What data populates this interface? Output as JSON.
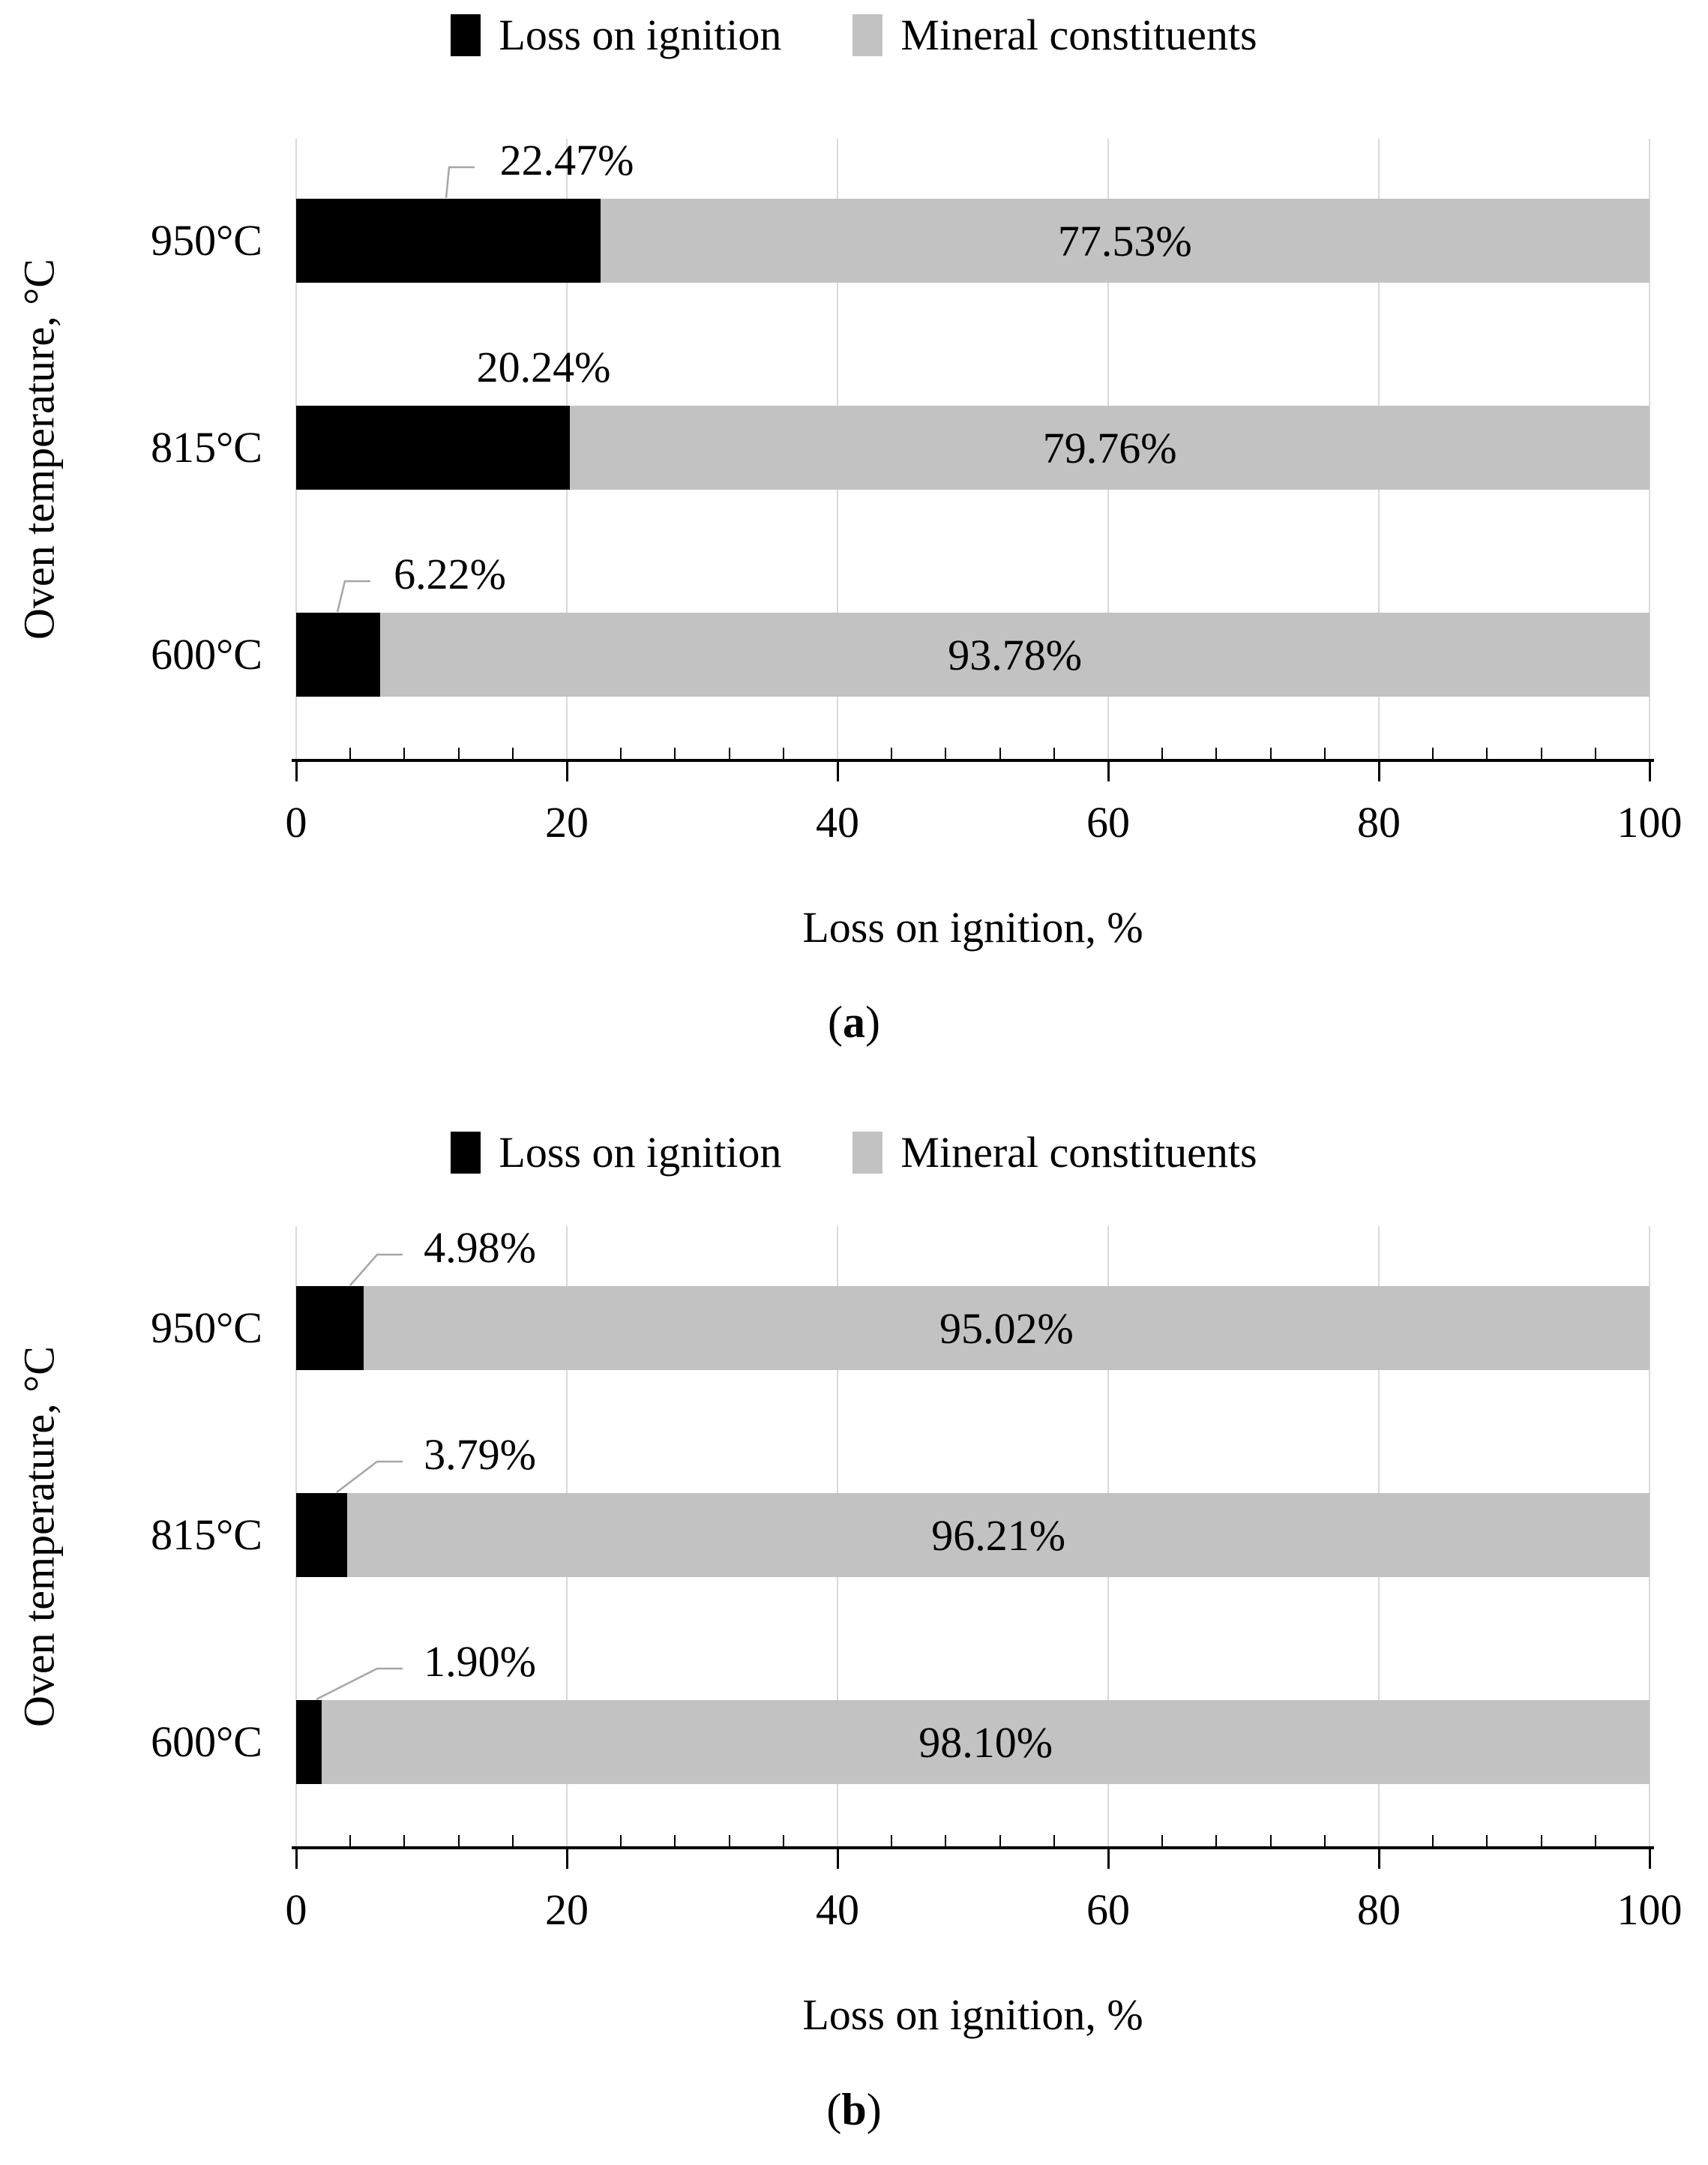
{
  "colors": {
    "loss_on_ignition": "#000000",
    "mineral_constituents": "#c2c2c2",
    "gridline": "#d9d9d9",
    "leader_line": "#a6a6a6",
    "axis": "#000000",
    "text": "#000000",
    "background": "#ffffff"
  },
  "chart_data": [
    {
      "panel": "a",
      "type": "bar",
      "orientation": "horizontal",
      "stacked": true,
      "xlabel": "Loss on ignition, %",
      "ylabel": "Oven temperature, °C",
      "xlim": [
        0,
        100
      ],
      "x_tick_labels": [
        "0",
        "20",
        "40",
        "60",
        "80",
        "100"
      ],
      "x_tick_values": [
        0,
        20,
        40,
        60,
        80,
        100
      ],
      "minor_tick_unit": 4,
      "grid": "vertical gridlines at major ticks",
      "legend_position": "top",
      "categories": [
        "950°C",
        "815°C",
        "600°C"
      ],
      "series": [
        {
          "name": "Loss on ignition",
          "color": "#000000",
          "values": [
            22.47,
            20.24,
            6.22
          ],
          "data_labels": [
            "22.47%",
            "20.24%",
            "6.22%"
          ]
        },
        {
          "name": "Mineral constituents",
          "color": "#c2c2c2",
          "values": [
            77.53,
            79.76,
            93.78
          ],
          "data_labels": [
            "77.53%",
            "79.76%",
            "93.78%"
          ]
        }
      ],
      "caption": {
        "open": "(",
        "letter": "a",
        "close": ")"
      }
    },
    {
      "panel": "b",
      "type": "bar",
      "orientation": "horizontal",
      "stacked": true,
      "xlabel": "Loss on ignition, %",
      "ylabel": "Oven temperature, °C",
      "xlim": [
        0,
        100
      ],
      "x_tick_labels": [
        "0",
        "20",
        "40",
        "60",
        "80",
        "100"
      ],
      "x_tick_values": [
        0,
        20,
        40,
        60,
        80,
        100
      ],
      "minor_tick_unit": 4,
      "grid": "vertical gridlines at major ticks",
      "legend_position": "top",
      "categories": [
        "950°C",
        "815°C",
        "600°C"
      ],
      "series": [
        {
          "name": "Loss on ignition",
          "color": "#000000",
          "values": [
            4.98,
            3.79,
            1.9
          ],
          "data_labels": [
            "4.98%",
            "3.79%",
            "1.90%"
          ]
        },
        {
          "name": "Mineral constituents",
          "color": "#c2c2c2",
          "values": [
            95.02,
            96.21,
            98.1
          ],
          "data_labels": [
            "95.02%",
            "96.21%",
            "98.10%"
          ]
        }
      ],
      "caption": {
        "open": "(",
        "letter": "b",
        "close": ")"
      }
    }
  ]
}
